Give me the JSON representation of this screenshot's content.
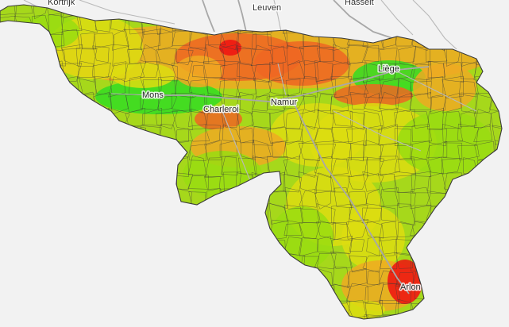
{
  "map": {
    "labels": {
      "kortrijk": "Kortrijk",
      "leuven": "Leuven",
      "hasselt": "Hasselt",
      "mons": "Mons",
      "charleroi": "Charleroi",
      "namur": "Namur",
      "liege": "Liège",
      "arlon": "Arlon"
    },
    "colors": {
      "background": "#f2f2f2",
      "low": "#33dd22",
      "mid_low": "#99dd11",
      "mid": "#dddd11",
      "mid_high": "#eeaa22",
      "high": "#ee6622",
      "very_high": "#ee1111",
      "borders": "#3a3a3a",
      "roads": "#b0b0b0"
    },
    "scale": "green-yellow-red choropleth"
  }
}
